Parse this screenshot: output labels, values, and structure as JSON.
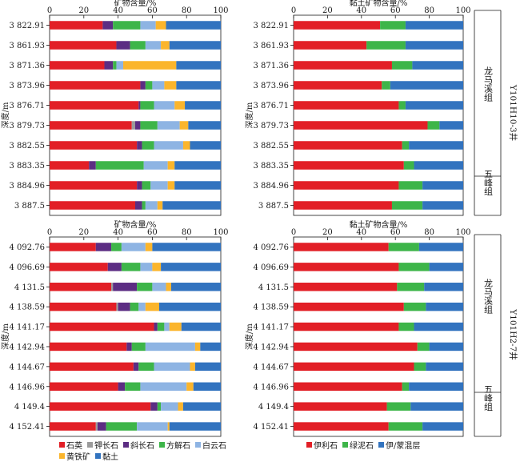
{
  "chart_data": [
    {
      "type": "bar",
      "orientation": "horizontal",
      "stacked": true,
      "panel": "top-left",
      "title": "矿物含量/%",
      "ylabel": "深度/m",
      "xlim": [
        0,
        100
      ],
      "xticks": [
        "0",
        "20",
        "40",
        "60",
        "80",
        "100"
      ],
      "categories": [
        "3 822.91",
        "3 861.93",
        "3 871.36",
        "3 873.96",
        "3 876.71",
        "3 879.73",
        "3 882.55",
        "3 883.35",
        "3 884.96",
        "3 887.5"
      ],
      "series": [
        {
          "name": "石英",
          "color": "#e21f26",
          "values": [
            31,
            39,
            32,
            53,
            52,
            48,
            51,
            23,
            51,
            50
          ]
        },
        {
          "name": "钾长石",
          "color": "#9b9b9b",
          "values": [
            0,
            0,
            0,
            0,
            0,
            2,
            0,
            0,
            0,
            0
          ]
        },
        {
          "name": "斜长石",
          "color": "#5c2d83",
          "values": [
            6,
            8,
            5,
            3,
            1,
            3,
            3,
            4,
            3,
            4
          ]
        },
        {
          "name": "方解石",
          "color": "#3db549",
          "values": [
            16,
            9,
            2,
            4,
            8,
            10,
            7,
            28,
            5,
            2
          ]
        },
        {
          "name": "白云石",
          "color": "#8eb4e3",
          "values": [
            9,
            9,
            4,
            7,
            12,
            13,
            17,
            14,
            10,
            7
          ]
        },
        {
          "name": "黄铁矿",
          "color": "#fbb52c",
          "values": [
            6,
            5,
            31,
            7,
            6,
            5,
            4,
            4,
            4,
            3
          ]
        },
        {
          "name": "黏土",
          "color": "#3273bf",
          "values": [
            32,
            30,
            26,
            26,
            21,
            19,
            18,
            27,
            27,
            34
          ]
        }
      ]
    },
    {
      "type": "bar",
      "orientation": "horizontal",
      "stacked": true,
      "panel": "top-right",
      "title": "黏土矿物含量/%",
      "ylabel": "深度/m",
      "xlim": [
        0,
        100
      ],
      "xticks": [
        "0",
        "20",
        "40",
        "60",
        "80",
        "100"
      ],
      "categories": [
        "3 822.91",
        "3 861.93",
        "3 871.36",
        "3 873.96",
        "3 876.71",
        "3 879.73",
        "3 882.55",
        "3 883.35",
        "3 884.96",
        "3 887.5"
      ],
      "series": [
        {
          "name": "伊利石",
          "color": "#e21f26",
          "values": [
            51,
            43,
            58,
            52,
            62,
            79,
            64,
            65,
            62,
            58
          ]
        },
        {
          "name": "绿泥石",
          "color": "#3db549",
          "values": [
            15,
            23,
            12,
            5,
            4,
            7,
            4,
            6,
            14,
            18
          ]
        },
        {
          "name": "伊/蒙混层",
          "color": "#3273bf",
          "values": [
            34,
            34,
            30,
            43,
            34,
            14,
            32,
            29,
            24,
            24
          ]
        }
      ]
    },
    {
      "type": "bar",
      "orientation": "horizontal",
      "stacked": true,
      "panel": "bottom-left",
      "title": "矿物含量/%",
      "ylabel": "深度/m",
      "xlim": [
        0,
        100
      ],
      "xticks": [
        "0",
        "20",
        "40",
        "60",
        "80",
        "100"
      ],
      "categories": [
        "4 092.76",
        "4 096.69",
        "4 131.5",
        "4 138.59",
        "4 141.17",
        "4 142.94",
        "4 144.67",
        "4 146.96",
        "4 149.4",
        "4 152.41"
      ],
      "series": [
        {
          "name": "石英",
          "color": "#e21f26",
          "values": [
            27,
            34,
            36,
            39,
            61,
            45,
            49,
            40,
            59,
            27
          ]
        },
        {
          "name": "钾长石",
          "color": "#9b9b9b",
          "values": [
            0,
            0,
            1,
            1,
            0,
            0,
            0,
            0,
            0,
            1
          ]
        },
        {
          "name": "斜长石",
          "color": "#5c2d83",
          "values": [
            9,
            8,
            14,
            7,
            2,
            3,
            3,
            4,
            4,
            5
          ]
        },
        {
          "name": "方解石",
          "color": "#3db549",
          "values": [
            6,
            11,
            9,
            5,
            4,
            8,
            9,
            9,
            2,
            18
          ]
        },
        {
          "name": "白云石",
          "color": "#8eb4e3",
          "values": [
            14,
            7,
            8,
            4,
            3,
            29,
            21,
            27,
            10,
            18
          ]
        },
        {
          "name": "黄铁矿",
          "color": "#fbb52c",
          "values": [
            4,
            5,
            3,
            8,
            7,
            3,
            3,
            4,
            3,
            1
          ]
        },
        {
          "name": "黏土",
          "color": "#3273bf",
          "values": [
            40,
            35,
            29,
            36,
            23,
            12,
            15,
            16,
            22,
            30
          ]
        }
      ]
    },
    {
      "type": "bar",
      "orientation": "horizontal",
      "stacked": true,
      "panel": "bottom-right",
      "title": "黏土矿物含量/%",
      "ylabel": "深度/m",
      "xlim": [
        0,
        100
      ],
      "xticks": [
        "0",
        "20",
        "40",
        "60",
        "80",
        "100"
      ],
      "categories": [
        "4 092.76",
        "4 096.69",
        "4 131.5",
        "4 138.59",
        "4 141.17",
        "4 142.94",
        "4 144.67",
        "4 146.96",
        "4 149.4",
        "4 152.41"
      ],
      "series": [
        {
          "name": "伊利石",
          "color": "#e21f26",
          "values": [
            56,
            62,
            61,
            65,
            62,
            73,
            71,
            64,
            55,
            56
          ]
        },
        {
          "name": "绿泥石",
          "color": "#3db549",
          "values": [
            18,
            18,
            16,
            13,
            9,
            7,
            7,
            4,
            14,
            20
          ]
        },
        {
          "name": "伊/蒙混层",
          "color": "#3273bf",
          "values": [
            26,
            20,
            23,
            22,
            29,
            20,
            22,
            32,
            31,
            24
          ]
        }
      ]
    }
  ],
  "annotations": {
    "well_top": "Y101H10-3井",
    "well_bottom": "Y101H2-7井",
    "formation_upper": "龙马溪组",
    "formation_lower": "五峰组"
  },
  "legend_left": [
    "石英",
    "钾长石",
    "斜长石",
    "方解石",
    "白云石",
    "黄铁矿",
    "黏土"
  ],
  "legend_right": [
    "伊利石",
    "绿泥石",
    "伊/蒙混层"
  ],
  "colors": {
    "quartz": "#e21f26",
    "k_feldspar": "#9b9b9b",
    "plagioclase": "#5c2d83",
    "calcite": "#3db549",
    "dolomite": "#8eb4e3",
    "pyrite": "#fbb52c",
    "clay": "#3273bf"
  }
}
